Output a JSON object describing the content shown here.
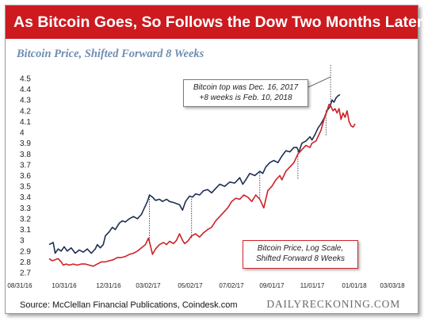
{
  "header": {
    "title": "As Bitcoin Goes, So Follows the Dow Two Months Later"
  },
  "chart_data": {
    "type": "line",
    "title": "As Bitcoin Goes, So Follows the Dow Two Months Later",
    "subtitle": "Bitcoin Price, Shifted Forward 8 Weeks",
    "y_ticks": [
      "2.7",
      "2.8",
      "2.9",
      "3",
      "3.1",
      "3.2",
      "3.3",
      "3.4",
      "3.5",
      "3.6",
      "3.7",
      "3.8",
      "3.9",
      "4",
      "4.1",
      "4.2",
      "4.3",
      "4.4",
      "4.5"
    ],
    "x_ticks": [
      "08/31/16",
      "10/31/16",
      "12/31/16",
      "03/02/17",
      "05/02/17",
      "07/02/17",
      "09/01/17",
      "11/01/17",
      "01/01/18",
      "03/03/18"
    ],
    "ylim": [
      2.7,
      4.5
    ],
    "grid": false,
    "annotations": [
      "Bitcoin top was Dec. 16, 2017",
      "+8 weeks is Feb. 10, 2018",
      "Bitcoin Price, Log Scale,",
      "Shifted Forward 8 Weeks"
    ],
    "colors": {
      "dow": "#1c2f52",
      "bitcoin": "#d02027",
      "title_bar": "#cc1a1f",
      "subtitle": "#6f8db1"
    },
    "series": [
      {
        "color_key": "dow",
        "points": [
          [
            0,
            2.96
          ],
          [
            4,
            2.98
          ],
          [
            6,
            2.88
          ],
          [
            9,
            2.92
          ],
          [
            12,
            2.9
          ],
          [
            15,
            2.94
          ],
          [
            18,
            2.9
          ],
          [
            22,
            2.93
          ],
          [
            26,
            2.88
          ],
          [
            30,
            2.91
          ],
          [
            34,
            2.89
          ],
          [
            38,
            2.92
          ],
          [
            42,
            2.88
          ],
          [
            46,
            2.92
          ],
          [
            48,
            2.96
          ],
          [
            51,
            2.93
          ],
          [
            54,
            2.96
          ],
          [
            56,
            3.04
          ],
          [
            60,
            3.08
          ],
          [
            63,
            3.12
          ],
          [
            66,
            3.1
          ],
          [
            70,
            3.16
          ],
          [
            73,
            3.18
          ],
          [
            76,
            3.17
          ],
          [
            80,
            3.2
          ],
          [
            84,
            3.22
          ],
          [
            88,
            3.2
          ],
          [
            92,
            3.24
          ],
          [
            95,
            3.3
          ],
          [
            98,
            3.36
          ],
          [
            100,
            3.42
          ],
          [
            103,
            3.4
          ],
          [
            106,
            3.37
          ],
          [
            110,
            3.38
          ],
          [
            113,
            3.36
          ],
          [
            117,
            3.38
          ],
          [
            120,
            3.36
          ],
          [
            124,
            3.35
          ],
          [
            127,
            3.34
          ],
          [
            130,
            3.33
          ],
          [
            133,
            3.28
          ],
          [
            136,
            3.36
          ],
          [
            140,
            3.41
          ],
          [
            143,
            3.4
          ],
          [
            146,
            3.43
          ],
          [
            150,
            3.42
          ],
          [
            154,
            3.46
          ],
          [
            158,
            3.47
          ],
          [
            162,
            3.44
          ],
          [
            166,
            3.48
          ],
          [
            170,
            3.52
          ],
          [
            175,
            3.5
          ],
          [
            180,
            3.54
          ],
          [
            185,
            3.53
          ],
          [
            190,
            3.58
          ],
          [
            193,
            3.52
          ],
          [
            196,
            3.56
          ],
          [
            200,
            3.62
          ],
          [
            205,
            3.6
          ],
          [
            210,
            3.64
          ],
          [
            213,
            3.62
          ],
          [
            216,
            3.68
          ],
          [
            220,
            3.72
          ],
          [
            224,
            3.74
          ],
          [
            228,
            3.72
          ],
          [
            232,
            3.78
          ],
          [
            236,
            3.83
          ],
          [
            240,
            3.82
          ],
          [
            244,
            3.86
          ],
          [
            247,
            3.86
          ],
          [
            249,
            3.82
          ],
          [
            252,
            3.9
          ],
          [
            256,
            3.92
          ],
          [
            260,
            3.96
          ],
          [
            262,
            3.93
          ],
          [
            265,
            3.98
          ],
          [
            268,
            4.04
          ],
          [
            271,
            4.08
          ],
          [
            274,
            4.13
          ],
          [
            277,
            4.2
          ],
          [
            280,
            4.24
          ],
          [
            282,
            4.3
          ],
          [
            284,
            4.28
          ],
          [
            286,
            4.32
          ],
          [
            288,
            4.34
          ],
          [
            290,
            4.35
          ]
        ]
      },
      {
        "color_key": "bitcoin",
        "points": [
          [
            0,
            2.83
          ],
          [
            3,
            2.81
          ],
          [
            6,
            2.82
          ],
          [
            9,
            2.83
          ],
          [
            12,
            2.8
          ],
          [
            14,
            2.77
          ],
          [
            17,
            2.78
          ],
          [
            20,
            2.77
          ],
          [
            24,
            2.78
          ],
          [
            28,
            2.77
          ],
          [
            32,
            2.78
          ],
          [
            36,
            2.78
          ],
          [
            40,
            2.77
          ],
          [
            44,
            2.76
          ],
          [
            48,
            2.78
          ],
          [
            52,
            2.8
          ],
          [
            56,
            2.8
          ],
          [
            60,
            2.81
          ],
          [
            64,
            2.82
          ],
          [
            68,
            2.84
          ],
          [
            72,
            2.84
          ],
          [
            76,
            2.85
          ],
          [
            80,
            2.87
          ],
          [
            84,
            2.88
          ],
          [
            88,
            2.9
          ],
          [
            92,
            2.93
          ],
          [
            96,
            2.96
          ],
          [
            99,
            3.02
          ],
          [
            101,
            2.95
          ],
          [
            103,
            2.87
          ],
          [
            106,
            2.92
          ],
          [
            110,
            2.96
          ],
          [
            114,
            2.98
          ],
          [
            117,
            2.96
          ],
          [
            120,
            2.99
          ],
          [
            124,
            2.97
          ],
          [
            127,
            3.0
          ],
          [
            130,
            3.06
          ],
          [
            133,
            3.0
          ],
          [
            135,
            2.97
          ],
          [
            138,
            2.99
          ],
          [
            142,
            3.04
          ],
          [
            146,
            3.06
          ],
          [
            150,
            3.03
          ],
          [
            154,
            3.07
          ],
          [
            158,
            3.1
          ],
          [
            162,
            3.12
          ],
          [
            166,
            3.18
          ],
          [
            170,
            3.22
          ],
          [
            174,
            3.26
          ],
          [
            178,
            3.3
          ],
          [
            182,
            3.36
          ],
          [
            186,
            3.39
          ],
          [
            190,
            3.38
          ],
          [
            194,
            3.42
          ],
          [
            198,
            3.4
          ],
          [
            202,
            3.36
          ],
          [
            206,
            3.42
          ],
          [
            210,
            3.38
          ],
          [
            214,
            3.3
          ],
          [
            218,
            3.46
          ],
          [
            222,
            3.5
          ],
          [
            226,
            3.56
          ],
          [
            230,
            3.6
          ],
          [
            232,
            3.56
          ],
          [
            236,
            3.64
          ],
          [
            240,
            3.68
          ],
          [
            244,
            3.72
          ],
          [
            248,
            3.8
          ],
          [
            252,
            3.84
          ],
          [
            256,
            3.88
          ],
          [
            260,
            3.86
          ],
          [
            262,
            3.9
          ],
          [
            266,
            3.92
          ],
          [
            268,
            3.96
          ],
          [
            271,
            4.02
          ],
          [
            274,
            4.12
          ],
          [
            277,
            4.2
          ],
          [
            279,
            4.26
          ],
          [
            281,
            4.24
          ],
          [
            283,
            4.2
          ],
          [
            285,
            4.22
          ],
          [
            287,
            4.18
          ],
          [
            289,
            4.22
          ],
          [
            291,
            4.12
          ],
          [
            293,
            4.18
          ],
          [
            295,
            4.14
          ],
          [
            297,
            4.2
          ],
          [
            299,
            4.1
          ],
          [
            301,
            4.06
          ],
          [
            303,
            4.05
          ],
          [
            305,
            4.08
          ]
        ]
      }
    ],
    "connectors": [
      [
        100,
        3.42,
        2.95
      ],
      [
        142,
        3.4,
        3.0
      ],
      [
        210,
        3.64,
        3.38
      ],
      [
        248,
        3.84,
        3.55
      ],
      [
        276,
        4.22,
        3.95
      ]
    ]
  },
  "footer": {
    "source": "Source: McClellan Financial Publications, Coindesk.com",
    "brand": "DAILYRECKONING.COM"
  }
}
